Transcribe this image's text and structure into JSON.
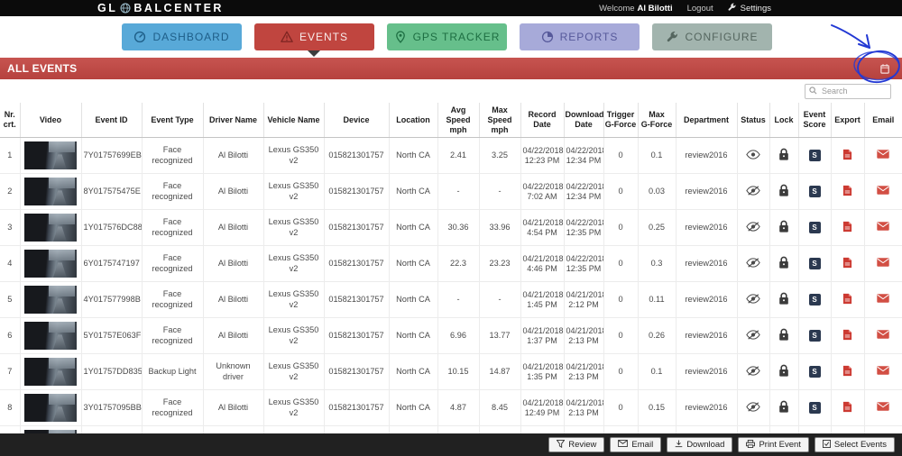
{
  "header": {
    "logo_left": "GL",
    "logo_right": "BALCENTER",
    "welcome": "Welcome",
    "user": "Al Bilotti",
    "logout": "Logout",
    "settings": "Settings"
  },
  "nav": {
    "tabs": [
      {
        "id": "dashboard",
        "label": "DASHBOARD",
        "bg": "#58a9d8",
        "fg": "#1e5e88",
        "icon_fg": "#1e5e88",
        "active": false
      },
      {
        "id": "events",
        "label": "EVENTS",
        "bg": "#c0453f",
        "fg": "#f8eceb",
        "icon_fg": "#7e2522",
        "active": true
      },
      {
        "id": "gps-tracker",
        "label": "GPS TRACKER",
        "bg": "#66bf8b",
        "fg": "#1d6e42",
        "icon_fg": "#1d6e42",
        "active": false
      },
      {
        "id": "reports",
        "label": "REPORTS",
        "bg": "#a7aad9",
        "fg": "#56599a",
        "icon_fg": "#56599a",
        "active": false
      },
      {
        "id": "configure",
        "label": "CONFIGURE",
        "bg": "#a2b4ae",
        "fg": "#55665f",
        "icon_fg": "#55665f",
        "active": false
      }
    ]
  },
  "section": {
    "title": "ALL EVENTS"
  },
  "search": {
    "placeholder": "Search"
  },
  "icons": {
    "score_glyph": "S"
  },
  "annotation": {
    "color": "#2238d4"
  },
  "table": {
    "headers": [
      {
        "key": "nr",
        "label": "Nr.\ncrt."
      },
      {
        "key": "video",
        "label": "Video"
      },
      {
        "key": "event_id",
        "label": "Event ID"
      },
      {
        "key": "event_type",
        "label": "Event Type"
      },
      {
        "key": "driver",
        "label": "Driver Name"
      },
      {
        "key": "vehicle",
        "label": "Vehicle Name"
      },
      {
        "key": "device",
        "label": "Device"
      },
      {
        "key": "location",
        "label": "Location"
      },
      {
        "key": "avg_speed",
        "label": "Avg Speed\nmph"
      },
      {
        "key": "max_speed",
        "label": "Max Speed\nmph"
      },
      {
        "key": "record_date",
        "label": "Record Date"
      },
      {
        "key": "download_date",
        "label": "Download\nDate"
      },
      {
        "key": "trigger_g",
        "label": "Trigger\nG-Force"
      },
      {
        "key": "max_g",
        "label": "Max\nG-Force"
      },
      {
        "key": "department",
        "label": "Department"
      },
      {
        "key": "status",
        "label": "Status"
      },
      {
        "key": "lock",
        "label": "Lock"
      },
      {
        "key": "score",
        "label": "Event\nScore"
      },
      {
        "key": "export",
        "label": "Export"
      },
      {
        "key": "email",
        "label": "Email"
      }
    ],
    "rows": [
      {
        "nr": "1",
        "event_id": "7Y01757699EB",
        "event_type": "Face recognized",
        "driver": "Al Bilotti",
        "vehicle": "Lexus GS350 v2",
        "device": "015821301757",
        "location": "North CA",
        "avg_speed": "2.41",
        "max_speed": "3.25",
        "record_date": "04/22/2018 12:23 PM",
        "download_date": "04/22/2018 12:34 PM",
        "trigger_g": "0",
        "max_g": "0.1",
        "department": "review2016",
        "status": "visible"
      },
      {
        "nr": "2",
        "event_id": "8Y017575475E",
        "event_type": "Face recognized",
        "driver": "Al Bilotti",
        "vehicle": "Lexus GS350 v2",
        "device": "015821301757",
        "location": "North CA",
        "avg_speed": "-",
        "max_speed": "-",
        "record_date": "04/22/2018 7:02 AM",
        "download_date": "04/22/2018 12:34 PM",
        "trigger_g": "0",
        "max_g": "0.03",
        "department": "review2016",
        "status": "hidden"
      },
      {
        "nr": "3",
        "event_id": "1Y017576DC88",
        "event_type": "Face recognized",
        "driver": "Al Bilotti",
        "vehicle": "Lexus GS350 v2",
        "device": "015821301757",
        "location": "North CA",
        "avg_speed": "30.36",
        "max_speed": "33.96",
        "record_date": "04/21/2018 4:54 PM",
        "download_date": "04/22/2018 12:35 PM",
        "trigger_g": "0",
        "max_g": "0.25",
        "department": "review2016",
        "status": "hidden"
      },
      {
        "nr": "4",
        "event_id": "6Y0175747197",
        "event_type": "Face recognized",
        "driver": "Al Bilotti",
        "vehicle": "Lexus GS350 v2",
        "device": "015821301757",
        "location": "North CA",
        "avg_speed": "22.3",
        "max_speed": "23.23",
        "record_date": "04/21/2018 4:46 PM",
        "download_date": "04/22/2018 12:35 PM",
        "trigger_g": "0",
        "max_g": "0.3",
        "department": "review2016",
        "status": "hidden"
      },
      {
        "nr": "5",
        "event_id": "4Y017577998B",
        "event_type": "Face recognized",
        "driver": "Al Bilotti",
        "vehicle": "Lexus GS350 v2",
        "device": "015821301757",
        "location": "North CA",
        "avg_speed": "-",
        "max_speed": "-",
        "record_date": "04/21/2018 1:45 PM",
        "download_date": "04/21/2018 2:12 PM",
        "trigger_g": "0",
        "max_g": "0.11",
        "department": "review2016",
        "status": "hidden"
      },
      {
        "nr": "6",
        "event_id": "5Y01757E063F",
        "event_type": "Face recognized",
        "driver": "Al Bilotti",
        "vehicle": "Lexus GS350 v2",
        "device": "015821301757",
        "location": "North CA",
        "avg_speed": "6.96",
        "max_speed": "13.77",
        "record_date": "04/21/2018 1:37 PM",
        "download_date": "04/21/2018 2:13 PM",
        "trigger_g": "0",
        "max_g": "0.26",
        "department": "review2016",
        "status": "hidden"
      },
      {
        "nr": "7",
        "event_id": "1Y01757DD835",
        "event_type": "Backup Light",
        "driver": "Unknown driver",
        "vehicle": "Lexus GS350 v2",
        "device": "015821301757",
        "location": "North CA",
        "avg_speed": "10.15",
        "max_speed": "14.87",
        "record_date": "04/21/2018 1:35 PM",
        "download_date": "04/21/2018 2:13 PM",
        "trigger_g": "0",
        "max_g": "0.1",
        "department": "review2016",
        "status": "hidden"
      },
      {
        "nr": "8",
        "event_id": "3Y01757095BB",
        "event_type": "Face recognized",
        "driver": "Al Bilotti",
        "vehicle": "Lexus GS350 v2",
        "device": "015821301757",
        "location": "North CA",
        "avg_speed": "4.87",
        "max_speed": "8.45",
        "record_date": "04/21/2018 12:49 PM",
        "download_date": "04/21/2018 2:13 PM",
        "trigger_g": "0",
        "max_g": "0.15",
        "department": "review2016",
        "status": "hidden"
      },
      {
        "nr": "",
        "event_id": "",
        "event_type": "",
        "driver": "",
        "vehicle": "",
        "device": "",
        "location": "",
        "avg_speed": "",
        "max_speed": "",
        "record_date": "",
        "download_date": "",
        "trigger_g": "",
        "max_g": "",
        "department": "",
        "status": ""
      }
    ]
  },
  "footer": {
    "buttons": [
      {
        "label": "Review"
      },
      {
        "label": "Email"
      },
      {
        "label": "Download"
      },
      {
        "label": "Print Event"
      },
      {
        "label": "Select Events"
      }
    ]
  }
}
